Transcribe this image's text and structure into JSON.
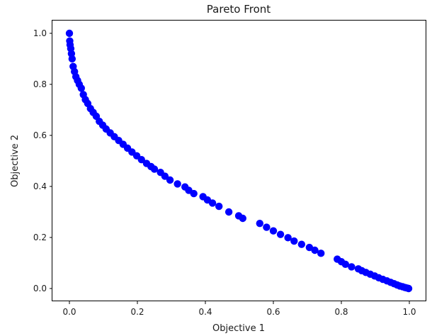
{
  "chart_data": {
    "type": "scatter",
    "title": "Pareto Front",
    "xlabel": "Objective 1",
    "ylabel": "Objective 2",
    "xlim": [
      -0.05,
      1.05
    ],
    "ylim": [
      -0.05,
      1.05
    ],
    "xticks": [
      0.0,
      0.2,
      0.4,
      0.6,
      0.8,
      1.0
    ],
    "yticks": [
      0.0,
      0.2,
      0.4,
      0.6,
      0.8,
      1.0
    ],
    "tick_labels_x": [
      "0.0",
      "0.2",
      "0.4",
      "0.6",
      "0.8",
      "1.0"
    ],
    "tick_labels_y": [
      "0.0",
      "0.2",
      "0.4",
      "0.6",
      "0.8",
      "1.0"
    ],
    "grid": false,
    "legend": "none",
    "color": "#0000ff",
    "series": [
      {
        "x": [
          0.0,
          0.001,
          0.002,
          0.004,
          0.006,
          0.008,
          0.011,
          0.015,
          0.019,
          0.024,
          0.029,
          0.035,
          0.041,
          0.047,
          0.054,
          0.062,
          0.07,
          0.079,
          0.088,
          0.098,
          0.108,
          0.12,
          0.132,
          0.145,
          0.158,
          0.171,
          0.184,
          0.198,
          0.212,
          0.227,
          0.24,
          0.25,
          0.268,
          0.281,
          0.296,
          0.318,
          0.34,
          0.351,
          0.366,
          0.393,
          0.406,
          0.421,
          0.44,
          0.469,
          0.498,
          0.51,
          0.56,
          0.58,
          0.6,
          0.621,
          0.643,
          0.661,
          0.683,
          0.706,
          0.722,
          0.74,
          0.788,
          0.8,
          0.812,
          0.83,
          0.85,
          0.86,
          0.872,
          0.885,
          0.898,
          0.91,
          0.922,
          0.934,
          0.945,
          0.955,
          0.964,
          0.972,
          0.98,
          0.987,
          0.993,
          0.998
        ],
        "y": [
          1.0,
          0.97,
          0.955,
          0.94,
          0.92,
          0.9,
          0.87,
          0.85,
          0.83,
          0.815,
          0.8,
          0.785,
          0.76,
          0.74,
          0.725,
          0.705,
          0.69,
          0.675,
          0.655,
          0.64,
          0.625,
          0.61,
          0.595,
          0.58,
          0.565,
          0.55,
          0.535,
          0.52,
          0.505,
          0.49,
          0.478,
          0.468,
          0.455,
          0.44,
          0.425,
          0.41,
          0.398,
          0.385,
          0.372,
          0.36,
          0.347,
          0.335,
          0.322,
          0.3,
          0.285,
          0.275,
          0.255,
          0.24,
          0.226,
          0.212,
          0.199,
          0.186,
          0.173,
          0.161,
          0.15,
          0.138,
          0.115,
          0.105,
          0.095,
          0.085,
          0.077,
          0.07,
          0.063,
          0.056,
          0.049,
          0.042,
          0.036,
          0.03,
          0.024,
          0.019,
          0.014,
          0.01,
          0.007,
          0.004,
          0.002,
          0.0
        ]
      }
    ]
  }
}
